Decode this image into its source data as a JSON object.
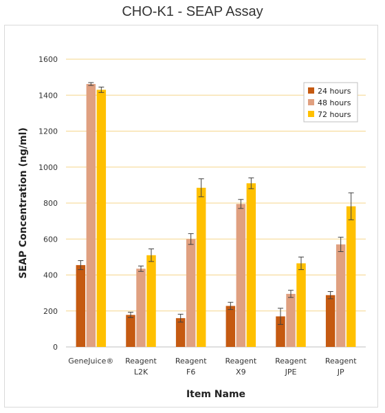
{
  "chart_data": {
    "type": "bar",
    "title": "CHO-K1 - SEAP Assay",
    "xlabel": "Item Name",
    "ylabel": "SEAP Concentration (ng/ml)",
    "ylim": [
      0,
      1600
    ],
    "yticks": [
      0,
      200,
      400,
      600,
      800,
      1000,
      1200,
      1400,
      1600
    ],
    "grid": true,
    "legend_position": "top-right",
    "categories": [
      [
        "GeneJuice®"
      ],
      [
        "Reagent",
        "L2K"
      ],
      [
        "Reagent",
        "F6"
      ],
      [
        "Reagent",
        "X9"
      ],
      [
        "Reagent",
        "JPE"
      ],
      [
        "Reagent",
        "JP"
      ]
    ],
    "series": [
      {
        "name": "24 hours",
        "color": "#c55a11",
        "values": [
          455,
          178,
          160,
          228,
          170,
          288
        ],
        "errors": [
          25,
          15,
          22,
          20,
          45,
          20
        ]
      },
      {
        "name": "48 hours",
        "color": "#e0a080",
        "values": [
          1462,
          435,
          600,
          795,
          295,
          570
        ],
        "errors": [
          8,
          15,
          30,
          25,
          20,
          40
        ]
      },
      {
        "name": "72 hours",
        "color": "#ffc000",
        "values": [
          1430,
          510,
          885,
          910,
          465,
          782
        ],
        "errors": [
          15,
          35,
          50,
          30,
          35,
          75
        ]
      }
    ]
  }
}
